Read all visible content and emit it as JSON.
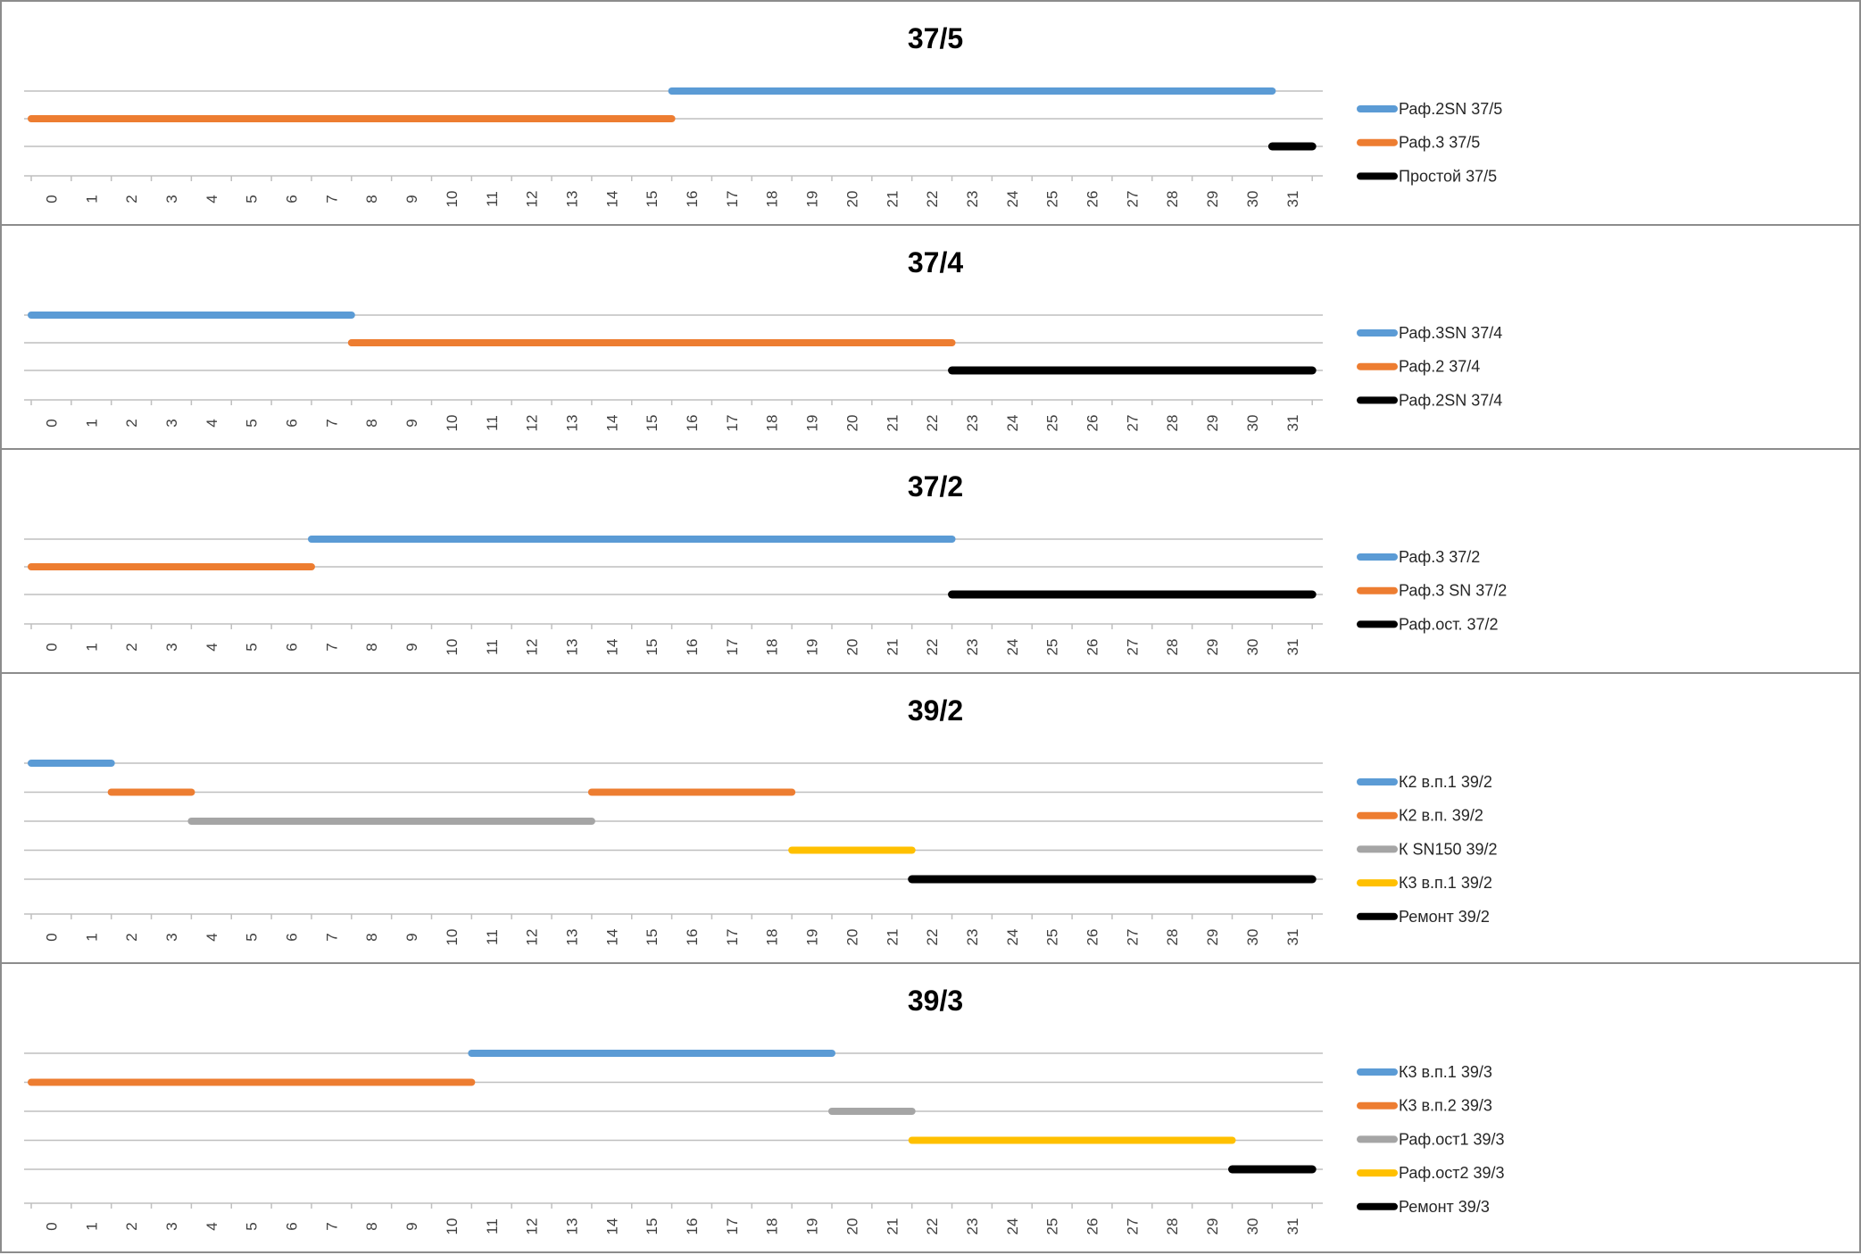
{
  "chart_data": [
    {
      "type": "gantt",
      "title": "37/5",
      "xlim": [
        0,
        31
      ],
      "x_ticks": [
        0,
        1,
        2,
        3,
        4,
        5,
        6,
        7,
        8,
        9,
        10,
        11,
        12,
        13,
        14,
        15,
        16,
        17,
        18,
        19,
        20,
        21,
        22,
        23,
        24,
        25,
        26,
        27,
        28,
        29,
        30,
        31
      ],
      "series": [
        {
          "name": "Раф.2SN 37/5",
          "color": "#5b9bd5",
          "segments": [
            [
              15.5,
              30.5
            ]
          ]
        },
        {
          "name": "Раф.3 37/5",
          "color": "#ed7d31",
          "segments": [
            [
              -0.5,
              15.5
            ]
          ]
        },
        {
          "name": "Простой 37/5",
          "color": "#000000",
          "segments": [
            [
              30.5,
              31.5
            ]
          ]
        }
      ]
    },
    {
      "type": "gantt",
      "title": "37/4",
      "xlim": [
        0,
        31
      ],
      "x_ticks": [
        0,
        1,
        2,
        3,
        4,
        5,
        6,
        7,
        8,
        9,
        10,
        11,
        12,
        13,
        14,
        15,
        16,
        17,
        18,
        19,
        20,
        21,
        22,
        23,
        24,
        25,
        26,
        27,
        28,
        29,
        30,
        31
      ],
      "series": [
        {
          "name": "Раф.3SN 37/4",
          "color": "#5b9bd5",
          "segments": [
            [
              -0.5,
              7.5
            ]
          ]
        },
        {
          "name": "Раф.2 37/4",
          "color": "#ed7d31",
          "segments": [
            [
              7.5,
              22.5
            ]
          ]
        },
        {
          "name": "Раф.2SN 37/4",
          "color": "#000000",
          "segments": [
            [
              22.5,
              31.5
            ]
          ]
        }
      ]
    },
    {
      "type": "gantt",
      "title": "37/2",
      "xlim": [
        0,
        31
      ],
      "x_ticks": [
        0,
        1,
        2,
        3,
        4,
        5,
        6,
        7,
        8,
        9,
        10,
        11,
        12,
        13,
        14,
        15,
        16,
        17,
        18,
        19,
        20,
        21,
        22,
        23,
        24,
        25,
        26,
        27,
        28,
        29,
        30,
        31
      ],
      "series": [
        {
          "name": "Раф.3 37/2",
          "color": "#5b9bd5",
          "segments": [
            [
              6.5,
              22.5
            ]
          ]
        },
        {
          "name": "Раф.3 SN 37/2",
          "color": "#ed7d31",
          "segments": [
            [
              -0.5,
              6.5
            ]
          ]
        },
        {
          "name": "Раф.ост. 37/2",
          "color": "#000000",
          "segments": [
            [
              22.5,
              31.5
            ]
          ]
        }
      ]
    },
    {
      "type": "gantt",
      "title": "39/2",
      "xlim": [
        0,
        31
      ],
      "x_ticks": [
        0,
        1,
        2,
        3,
        4,
        5,
        6,
        7,
        8,
        9,
        10,
        11,
        12,
        13,
        14,
        15,
        16,
        17,
        18,
        19,
        20,
        21,
        22,
        23,
        24,
        25,
        26,
        27,
        28,
        29,
        30,
        31
      ],
      "series": [
        {
          "name": "К2 в.п.1 39/2",
          "color": "#5b9bd5",
          "segments": [
            [
              -0.5,
              1.5
            ]
          ]
        },
        {
          "name": "К2 в.п. 39/2",
          "color": "#ed7d31",
          "segments": [
            [
              1.5,
              3.5
            ],
            [
              13.5,
              18.5
            ]
          ]
        },
        {
          "name": "К SN150 39/2",
          "color": "#a5a5a5",
          "segments": [
            [
              3.5,
              13.5
            ]
          ]
        },
        {
          "name": "К3 в.п.1 39/2",
          "color": "#ffc000",
          "segments": [
            [
              18.5,
              21.5
            ]
          ]
        },
        {
          "name": "Ремонт 39/2",
          "color": "#000000",
          "segments": [
            [
              21.5,
              31.5
            ]
          ]
        }
      ]
    },
    {
      "type": "gantt",
      "title": "39/3",
      "xlim": [
        0,
        31
      ],
      "x_ticks": [
        0,
        1,
        2,
        3,
        4,
        5,
        6,
        7,
        8,
        9,
        10,
        11,
        12,
        13,
        14,
        15,
        16,
        17,
        18,
        19,
        20,
        21,
        22,
        23,
        24,
        25,
        26,
        27,
        28,
        29,
        30,
        31
      ],
      "series": [
        {
          "name": "К3 в.п.1 39/3",
          "color": "#5b9bd5",
          "segments": [
            [
              10.5,
              19.5
            ]
          ]
        },
        {
          "name": "К3 в.п.2 39/3",
          "color": "#ed7d31",
          "segments": [
            [
              -0.5,
              10.5
            ]
          ]
        },
        {
          "name": "Раф.ост1 39/3",
          "color": "#a5a5a5",
          "segments": [
            [
              19.5,
              21.5
            ]
          ]
        },
        {
          "name": "Раф.ост2 39/3",
          "color": "#ffc000",
          "segments": [
            [
              21.5,
              29.5
            ]
          ]
        },
        {
          "name": "Ремонт 39/3",
          "color": "#000000",
          "segments": [
            [
              29.5,
              31.5
            ]
          ]
        }
      ]
    }
  ]
}
